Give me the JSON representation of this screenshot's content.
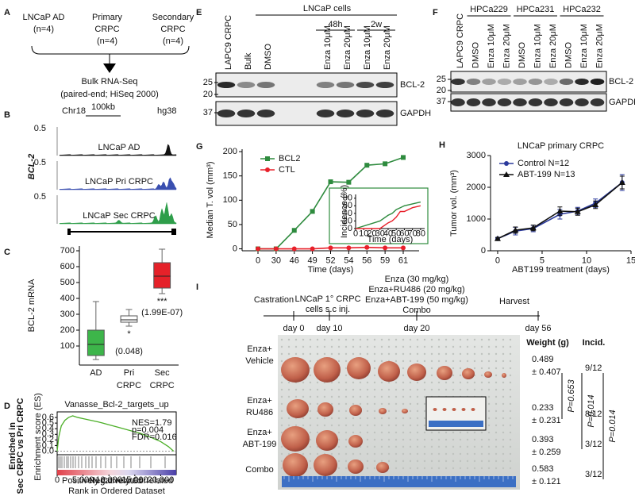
{
  "panel_labels": [
    "A",
    "B",
    "C",
    "D",
    "E",
    "F",
    "G",
    "H",
    "I"
  ],
  "panel_a": {
    "groups": [
      [
        "LNCaP AD",
        "(n=4)"
      ],
      [
        "Primary",
        "CRPC",
        "(n=4)"
      ],
      [
        "Secondary",
        "CRPC",
        "(n=4)"
      ]
    ],
    "method": "Bulk RNA-Seq",
    "method_detail": "(paired-end; HiSeq 2000)"
  },
  "panel_b": {
    "gene": "BCL-2",
    "chromosome": "Chr18",
    "scale": "100kb",
    "genome": "hg38",
    "tracks": [
      {
        "name": "LNCaP AD",
        "range": "0.5",
        "color": "#111111"
      },
      {
        "name": "LNCaP Pri CRPC",
        "range": "0.5",
        "color": "#3a4fb0"
      },
      {
        "name": "LNCaP Sec CRPC",
        "range": "0.5",
        "color": "#2e9e4a"
      }
    ]
  },
  "panel_e": {
    "header": "LNCaP cells",
    "time_points": [
      "48h",
      "2w"
    ],
    "lanes": [
      "LAPC9 CRPC",
      "Bulk",
      "DMSO",
      "Enza 10μM",
      "Enza 20μM",
      "Enza 10μM",
      "Enza 20μM"
    ],
    "markers": [
      "25",
      "20",
      "37"
    ],
    "proteins": [
      "BCL-2",
      "GAPDH"
    ]
  },
  "panel_f": {
    "groups": [
      "HPCa229",
      "HPCa231",
      "HPCa232"
    ],
    "lanes": [
      "LAPC9 CRPC",
      "DMSO",
      "Enza 10μM",
      "Enza 20μM",
      "DMSO",
      "Enza 10μM",
      "Enza 20μM",
      "DMSO",
      "Enza 10μM",
      "Enza 20μM"
    ],
    "markers": [
      "25",
      "20",
      "37"
    ],
    "proteins": [
      "BCL-2",
      "GAPDH"
    ]
  },
  "panel_i": {
    "timeline": {
      "start": "Castration",
      "injection": [
        "LNCaP 1° CRPC",
        "cells s.c inj."
      ],
      "treatments": [
        "Enza (30 mg/kg)",
        "Enza+RU486 (20 mg/kg)",
        "Enza+ABT-199 (50 mg/kg)",
        "Combo"
      ],
      "end": "Harvest",
      "days": [
        "day 0",
        "day 10",
        "day 20",
        "day 56"
      ]
    },
    "weight_header": "Weight (g)",
    "incidence_header": "Incid.",
    "rows": [
      {
        "group": [
          "Enza+",
          "Vehicle"
        ],
        "weight": "0.489",
        "sd": "± 0.407",
        "incidence": "9/12"
      },
      {
        "group": [
          "Enza+",
          "RU486"
        ],
        "weight": "0.233",
        "sd": "± 0.231",
        "incidence": "8/12"
      },
      {
        "group": [
          "Enza+",
          "ABT-199"
        ],
        "weight": "0.393",
        "sd": "± 0.259",
        "incidence": "3/12"
      },
      {
        "group": [
          "Combo"
        ],
        "weight": "0.583",
        "sd": "± 0.121",
        "incidence": "3/12"
      }
    ],
    "p_values": [
      "P=0.653",
      "P=0.014",
      "P=0.014"
    ]
  },
  "chart_data": [
    {
      "type": "box",
      "ylabel": "BCL-2 mRNA",
      "categories": [
        "AD",
        "Pri",
        "Sec"
      ],
      "category_sublabels": [
        null,
        "CRPC",
        "CRPC"
      ],
      "boxes": [
        {
          "min": 15,
          "q1": 40,
          "median": 110,
          "q3": 200,
          "max": 380
        },
        {
          "min": 225,
          "q1": 250,
          "median": 265,
          "q3": 290,
          "max": 330
        },
        {
          "min": 430,
          "q1": 465,
          "median": 540,
          "q3": 625,
          "max": 710
        }
      ],
      "colors": [
        "#3db54a",
        "#ffffff",
        "#e52129"
      ],
      "stars": [
        null,
        "*",
        "***"
      ],
      "p_labels": [
        null,
        "(0.048)",
        "(1.99E-07)"
      ],
      "annotation_color": "#2b3a9c",
      "ylim": [
        -20,
        730
      ],
      "yticks": [
        100,
        200,
        300,
        400,
        500,
        600,
        700
      ]
    },
    {
      "type": "gsea",
      "title": "Vanasse_Bcl-2_targets_up",
      "stats": [
        "NES=1.79",
        "p=0.004",
        "FDR=0.016"
      ],
      "side_label": [
        "Enriched in",
        "Sec CRPC vs Pri CRPC"
      ],
      "ylabel": "Enrichment score (ES)",
      "xlabel": "Rank in Ordered Dataset",
      "pos_label": "Positively Correlated",
      "neg_label": "Negatively Correlated",
      "color": "#4caf28",
      "x": [
        0,
        300,
        800,
        1500,
        2200,
        3000,
        4000,
        5000,
        6500,
        8000,
        10000,
        12000,
        14000,
        16000,
        18000,
        20000,
        21500,
        22500
      ],
      "values": [
        0,
        0.25,
        0.45,
        0.55,
        0.6,
        0.63,
        0.6,
        0.58,
        0.55,
        0.52,
        0.47,
        0.42,
        0.37,
        0.32,
        0.25,
        0.17,
        0.08,
        0
      ],
      "xlim": [
        0,
        23000
      ],
      "ylim": [
        -0.05,
        0.7
      ],
      "xticks": [
        0,
        {
          "value": 5000,
          "label": "5,000"
        },
        {
          "value": 10000,
          "label": "10,000"
        },
        {
          "value": 15000,
          "label": "15,000"
        },
        {
          "value": 20000,
          "label": "20,000"
        }
      ],
      "yticks": [
        {
          "value": 0,
          "label": "0.0"
        },
        0.1,
        0.2,
        0.3,
        0.4,
        0.5,
        0.6
      ]
    },
    {
      "type": "line",
      "ylabel": "Median T. vol (mm³)",
      "xlabel": "Time (days)",
      "categories": [
        0,
        30,
        46,
        49,
        52,
        54,
        56,
        59,
        61
      ],
      "series": [
        {
          "name": "BCL2",
          "color": "#2e8b3e",
          "marker": "square",
          "values": [
            0,
            0,
            38,
            77,
            138,
            137,
            172,
            175,
            188
          ]
        },
        {
          "name": "CTL",
          "color": "#e8202a",
          "marker": "circle",
          "values": [
            0,
            0,
            0,
            0,
            2,
            2,
            3,
            2,
            2
          ]
        }
      ],
      "ylim": [
        -4,
        205
      ],
      "yticks": [
        0,
        50,
        100,
        150,
        200
      ],
      "legend": "upper left"
    },
    {
      "type": "line",
      "ylabel": "Incidence (%)",
      "xlabel": "Time (days)",
      "x": [
        0,
        30,
        40,
        45,
        50,
        55,
        60,
        70,
        80
      ],
      "series": [
        {
          "color": "#2e8b3e",
          "values": [
            0,
            20,
            35,
            40,
            50,
            55,
            60,
            65,
            70
          ]
        },
        {
          "color": "#e8202a",
          "values": [
            0,
            0,
            15,
            20,
            30,
            45,
            45,
            55,
            60
          ]
        }
      ],
      "xlim": [
        0,
        85
      ],
      "ylim": [
        0,
        90
      ],
      "xticks": [
        0,
        10,
        20,
        30,
        40,
        50,
        60,
        70,
        80
      ],
      "yticks": [
        0,
        20,
        40,
        60,
        80
      ]
    },
    {
      "type": "line",
      "title": "LNCaP primary CRPC",
      "ylabel": "Tumor vol. (mm³)",
      "xlabel": "ABT199 treatment (days)",
      "x": [
        0,
        2,
        4,
        7,
        9,
        11,
        14
      ],
      "series": [
        {
          "name": "Control N=12",
          "color": "#2b3a9c",
          "marker": "circle",
          "values": [
            380,
            620,
            700,
            1150,
            1250,
            1500,
            2150
          ],
          "errors": [
            40,
            120,
            100,
            150,
            120,
            130,
            250
          ]
        },
        {
          "name": "ABT-199 N=13",
          "color": "#111111",
          "marker": "triangle",
          "values": [
            380,
            650,
            720,
            1250,
            1230,
            1450,
            2150
          ],
          "errors": [
            40,
            100,
            90,
            130,
            110,
            120,
            200
          ]
        }
      ],
      "xlim": [
        -0.8,
        15
      ],
      "ylim": [
        0,
        3000
      ],
      "xticks": [
        0,
        5,
        10,
        15
      ],
      "yticks": [
        0,
        1000,
        2000,
        3000
      ],
      "legend": "upper left"
    }
  ]
}
